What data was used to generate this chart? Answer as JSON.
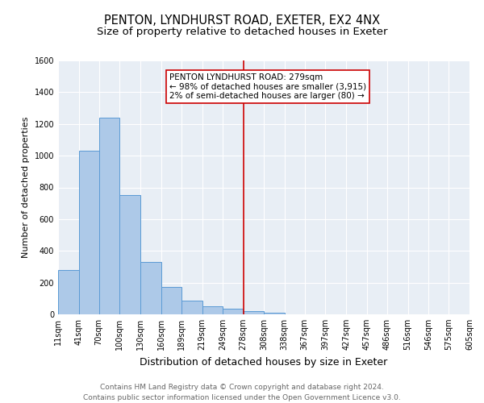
{
  "title": "PENTON, LYNDHURST ROAD, EXETER, EX2 4NX",
  "subtitle": "Size of property relative to detached houses in Exeter",
  "xlabel": "Distribution of detached houses by size in Exeter",
  "ylabel": "Number of detached properties",
  "bin_edges": [
    11,
    41,
    70,
    100,
    130,
    160,
    189,
    219,
    249,
    278,
    308,
    338,
    367,
    397,
    427,
    457,
    486,
    516,
    546,
    575,
    605
  ],
  "bin_heights": [
    280,
    1030,
    1240,
    750,
    330,
    175,
    85,
    50,
    35,
    20,
    8,
    0,
    0,
    0,
    0,
    0,
    0,
    0,
    0,
    0
  ],
  "bar_color": "#adc9e8",
  "bar_edge_color": "#5b9bd5",
  "vline_x": 279,
  "vline_color": "#cc0000",
  "annotation_title": "PENTON LYNDHURST ROAD: 279sqm",
  "annotation_line1": "← 98% of detached houses are smaller (3,915)",
  "annotation_line2": "2% of semi-detached houses are larger (80) →",
  "annotation_box_edge": "#cc0000",
  "ylim": [
    0,
    1600
  ],
  "yticks": [
    0,
    200,
    400,
    600,
    800,
    1000,
    1200,
    1400,
    1600
  ],
  "bg_color": "#e8eef5",
  "grid_color": "#ffffff",
  "footer_line1": "Contains HM Land Registry data © Crown copyright and database right 2024.",
  "footer_line2": "Contains public sector information licensed under the Open Government Licence v3.0.",
  "title_fontsize": 10.5,
  "subtitle_fontsize": 9.5,
  "xlabel_fontsize": 9,
  "ylabel_fontsize": 8,
  "tick_fontsize": 7,
  "annotation_fontsize": 7.5,
  "footer_fontsize": 6.5
}
